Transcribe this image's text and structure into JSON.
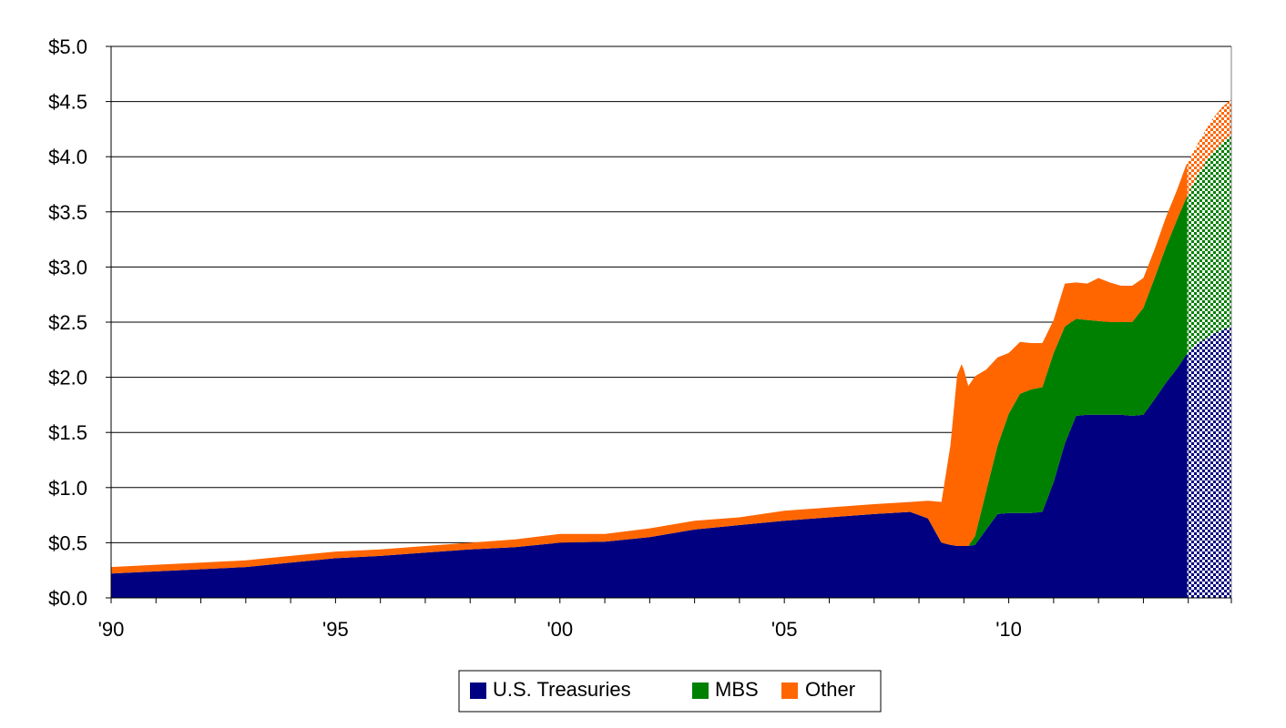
{
  "chart_data": {
    "type": "area",
    "stacked": true,
    "title": "",
    "xlabel": "",
    "ylabel": "",
    "xlim": [
      1990,
      2014.96
    ],
    "ylim": [
      0,
      5
    ],
    "y_ticks": [
      0,
      0.5,
      1.0,
      1.5,
      2.0,
      2.5,
      3.0,
      3.5,
      4.0,
      4.5,
      5.0
    ],
    "y_tick_labels": [
      "$0.0",
      "$0.5",
      "$1.0",
      "$1.5",
      "$2.0",
      "$2.5",
      "$3.0",
      "$3.5",
      "$4.0",
      "$4.5",
      "$5.0"
    ],
    "x_ticks": [
      1990,
      1995,
      2000,
      2005,
      2010
    ],
    "x_tick_labels": [
      "'90",
      "'95",
      "'00",
      "'05",
      "'10"
    ],
    "projection_start": 2013.98,
    "grid": "horizontal",
    "legend_position": "bottom-center",
    "x": [
      1990,
      1991,
      1992,
      1993,
      1994,
      1995,
      1996,
      1997,
      1998,
      1999,
      2000,
      2001,
      2002,
      2003,
      2004,
      2005,
      2006,
      2007,
      2007.8,
      2008.2,
      2008.5,
      2008.7,
      2008.85,
      2008.95,
      2009,
      2009.1,
      2009.25,
      2009.5,
      2009.75,
      2010,
      2010.25,
      2010.5,
      2010.75,
      2011,
      2011.25,
      2011.5,
      2011.75,
      2012,
      2012.25,
      2012.5,
      2012.75,
      2013,
      2013.25,
      2013.5,
      2013.75,
      2013.95,
      2014.2,
      2014.5,
      2014.75,
      2014.96
    ],
    "series": [
      {
        "name": "U.S. Treasuries",
        "color": "#000080",
        "values": [
          0.22,
          0.24,
          0.26,
          0.28,
          0.32,
          0.36,
          0.38,
          0.41,
          0.44,
          0.46,
          0.5,
          0.51,
          0.55,
          0.62,
          0.66,
          0.7,
          0.73,
          0.76,
          0.78,
          0.72,
          0.5,
          0.48,
          0.47,
          0.47,
          0.47,
          0.47,
          0.48,
          0.62,
          0.76,
          0.77,
          0.77,
          0.77,
          0.78,
          1.05,
          1.4,
          1.65,
          1.66,
          1.66,
          1.66,
          1.66,
          1.65,
          1.66,
          1.8,
          1.95,
          2.08,
          2.2,
          2.3,
          2.38,
          2.43,
          2.46
        ]
      },
      {
        "name": "MBS",
        "color": "#008000",
        "values": [
          0,
          0,
          0,
          0,
          0,
          0,
          0,
          0,
          0,
          0,
          0,
          0,
          0,
          0,
          0,
          0,
          0,
          0,
          0,
          0,
          0,
          0,
          0,
          0,
          0,
          0,
          0.08,
          0.35,
          0.62,
          0.9,
          1.08,
          1.12,
          1.13,
          1.17,
          1.06,
          0.88,
          0.86,
          0.85,
          0.84,
          0.84,
          0.85,
          0.97,
          1.1,
          1.23,
          1.35,
          1.42,
          1.53,
          1.64,
          1.7,
          1.74
        ]
      },
      {
        "name": "Other",
        "color": "#FF6600",
        "values": [
          0.06,
          0.06,
          0.06,
          0.06,
          0.06,
          0.06,
          0.06,
          0.06,
          0.06,
          0.07,
          0.08,
          0.07,
          0.08,
          0.08,
          0.07,
          0.09,
          0.09,
          0.09,
          0.09,
          0.16,
          0.37,
          0.9,
          1.55,
          1.65,
          1.6,
          1.45,
          1.45,
          1.1,
          0.8,
          0.55,
          0.47,
          0.42,
          0.4,
          0.3,
          0.39,
          0.33,
          0.33,
          0.39,
          0.36,
          0.33,
          0.33,
          0.27,
          0.26,
          0.27,
          0.27,
          0.3,
          0.28,
          0.3,
          0.32,
          0.32
        ]
      }
    ]
  }
}
